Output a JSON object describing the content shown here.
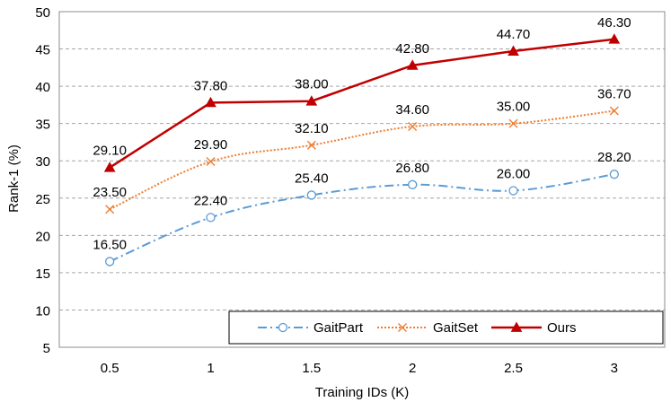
{
  "chart_data": {
    "type": "line",
    "xlabel": "Training IDs (K)",
    "ylabel": "Rank-1 (%)",
    "x": [
      0.5,
      1,
      1.5,
      2,
      2.5,
      3
    ],
    "x_tick_labels": [
      "0.5",
      "1",
      "1.5",
      "2",
      "2.5",
      "3"
    ],
    "ylim": [
      5,
      50
    ],
    "y_ticks": [
      5,
      10,
      15,
      20,
      25,
      30,
      35,
      40,
      45,
      50
    ],
    "grid": "horizontal dashed",
    "legend_position": "bottom-right",
    "series": [
      {
        "name": "GaitPart",
        "values": [
          16.5,
          22.4,
          25.4,
          26.8,
          26.0,
          28.2
        ],
        "labels": [
          "16.50",
          "22.40",
          "25.40",
          "26.80",
          "26.00",
          "28.20"
        ],
        "color": "#5b9bd5",
        "marker": "circle",
        "line_style": "dash-dot"
      },
      {
        "name": "GaitSet",
        "values": [
          23.5,
          29.9,
          32.1,
          34.6,
          35.0,
          36.7
        ],
        "labels": [
          "23.50",
          "29.90",
          "32.10",
          "34.60",
          "35.00",
          "36.70"
        ],
        "color": "#ed7d31",
        "marker": "x",
        "line_style": "dotted"
      },
      {
        "name": "Ours",
        "values": [
          29.1,
          37.8,
          38.0,
          42.8,
          44.7,
          46.3
        ],
        "labels": [
          "29.10",
          "37.80",
          "38.00",
          "42.80",
          "44.70",
          "46.30"
        ],
        "color": "#c00000",
        "marker": "triangle",
        "line_style": "solid"
      }
    ]
  }
}
